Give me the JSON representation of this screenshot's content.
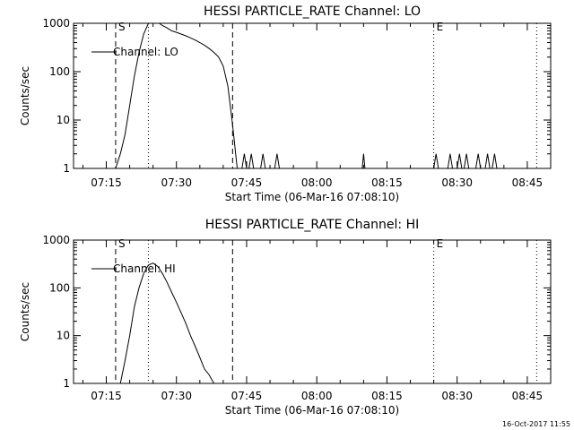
{
  "timestamp": "16-Oct-2017 11:55",
  "chart_data": [
    {
      "type": "line",
      "title": "HESSI PARTICLE_RATE Channel: LO",
      "xlabel": "Start Time (06-Mar-16 07:08:10)",
      "ylabel": "Counts/sec",
      "yscale": "log",
      "ylim": [
        1,
        1000
      ],
      "xlim": [
        "07:08",
        "08:50"
      ],
      "xticks": [
        "07:15",
        "07:30",
        "07:45",
        "08:00",
        "08:15",
        "08:30",
        "08:45"
      ],
      "yticks": [
        "1",
        "10",
        "100",
        "1000"
      ],
      "legend": "Channel: LO",
      "legend_position": "top-left",
      "markers": [
        {
          "time": "07:17",
          "style": "dashed",
          "label": "S"
        },
        {
          "time": "07:24",
          "style": "dotted",
          "label": ""
        },
        {
          "time": "07:42",
          "style": "dashed",
          "label": ""
        },
        {
          "time": "08:25",
          "style": "dotted",
          "label": "E"
        },
        {
          "time": "08:47",
          "style": "dotted",
          "label": ""
        }
      ],
      "series": [
        {
          "points": [
            [
              "07:17",
              1
            ],
            [
              "07:18",
              2
            ],
            [
              "07:19",
              5
            ],
            [
              "07:20",
              20
            ],
            [
              "07:21",
              80
            ],
            [
              "07:22",
              250
            ],
            [
              "07:23",
              600
            ],
            [
              "07:24",
              1000
            ],
            [
              "07:25",
              1100
            ],
            [
              "07:26",
              1050
            ],
            [
              "07:27",
              900
            ],
            [
              "07:28",
              800
            ],
            [
              "07:29",
              700
            ],
            [
              "07:30",
              650
            ],
            [
              "07:31",
              600
            ],
            [
              "07:32",
              550
            ],
            [
              "07:33",
              500
            ],
            [
              "07:34",
              450
            ],
            [
              "07:35",
              400
            ],
            [
              "07:36",
              350
            ],
            [
              "07:37",
              300
            ],
            [
              "07:38",
              250
            ],
            [
              "07:39",
              200
            ],
            [
              "07:40",
              130
            ],
            [
              "07:41",
              50
            ],
            [
              "07:42",
              8
            ],
            [
              "07:43",
              1
            ]
          ]
        },
        {
          "points": [
            [
              "07:44",
              1
            ],
            [
              "07:44.5",
              2
            ],
            [
              "07:45",
              1
            ]
          ]
        },
        {
          "points": [
            [
              "07:45.5",
              1
            ],
            [
              "07:46",
              2
            ],
            [
              "07:46.5",
              1
            ]
          ]
        },
        {
          "points": [
            [
              "07:48",
              1
            ],
            [
              "07:48.5",
              2
            ],
            [
              "07:49",
              1
            ]
          ]
        },
        {
          "points": [
            [
              "07:51",
              1
            ],
            [
              "07:51.5",
              2
            ],
            [
              "07:52",
              1
            ]
          ]
        },
        {
          "points": [
            [
              "08:09.7",
              1
            ],
            [
              "08:10",
              2
            ],
            [
              "08:10.3",
              1
            ]
          ]
        },
        {
          "points": [
            [
              "08:25",
              1
            ],
            [
              "08:25.5",
              2
            ],
            [
              "08:26",
              1
            ]
          ]
        },
        {
          "points": [
            [
              "08:28",
              1
            ],
            [
              "08:28.5",
              2
            ],
            [
              "08:29",
              1
            ]
          ]
        },
        {
          "points": [
            [
              "08:30",
              1
            ],
            [
              "08:30.5",
              2
            ],
            [
              "08:31",
              1
            ]
          ]
        },
        {
          "points": [
            [
              "08:31.5",
              1
            ],
            [
              "08:32",
              2
            ],
            [
              "08:32.5",
              1
            ]
          ]
        },
        {
          "points": [
            [
              "08:34",
              1
            ],
            [
              "08:34.5",
              2
            ],
            [
              "08:35",
              1
            ]
          ]
        },
        {
          "points": [
            [
              "08:36",
              1
            ],
            [
              "08:36.5",
              2
            ],
            [
              "08:37",
              1
            ]
          ]
        },
        {
          "points": [
            [
              "08:37.5",
              1
            ],
            [
              "08:38",
              2
            ],
            [
              "08:38.5",
              1
            ]
          ]
        }
      ]
    },
    {
      "type": "line",
      "title": "HESSI PARTICLE_RATE Channel: HI",
      "xlabel": "Start Time (06-Mar-16 07:08:10)",
      "ylabel": "Counts/sec",
      "yscale": "log",
      "ylim": [
        1,
        1000
      ],
      "xlim": [
        "07:08",
        "08:50"
      ],
      "xticks": [
        "07:15",
        "07:30",
        "07:45",
        "08:00",
        "08:15",
        "08:30",
        "08:45"
      ],
      "yticks": [
        "1",
        "10",
        "100",
        "1000"
      ],
      "legend": "Channel: HI",
      "legend_position": "top-left",
      "markers": [
        {
          "time": "07:17",
          "style": "dashed",
          "label": "S"
        },
        {
          "time": "07:24",
          "style": "dotted",
          "label": ""
        },
        {
          "time": "07:42",
          "style": "dashed",
          "label": ""
        },
        {
          "time": "08:25",
          "style": "dotted",
          "label": "E"
        },
        {
          "time": "08:47",
          "style": "dotted",
          "label": ""
        }
      ],
      "series": [
        {
          "points": [
            [
              "07:18",
              1
            ],
            [
              "07:19",
              3
            ],
            [
              "07:20",
              10
            ],
            [
              "07:21",
              40
            ],
            [
              "07:22",
              100
            ],
            [
              "07:23",
              200
            ],
            [
              "07:24",
              300
            ],
            [
              "07:25",
              330
            ],
            [
              "07:26",
              280
            ],
            [
              "07:27",
              200
            ],
            [
              "07:28",
              130
            ],
            [
              "07:29",
              80
            ],
            [
              "07:30",
              50
            ],
            [
              "07:31",
              30
            ],
            [
              "07:32",
              18
            ],
            [
              "07:33",
              10
            ],
            [
              "07:34",
              6
            ],
            [
              "07:35",
              3.5
            ],
            [
              "07:36",
              2
            ],
            [
              "07:37",
              1.5
            ],
            [
              "07:38",
              1
            ]
          ]
        }
      ]
    }
  ]
}
